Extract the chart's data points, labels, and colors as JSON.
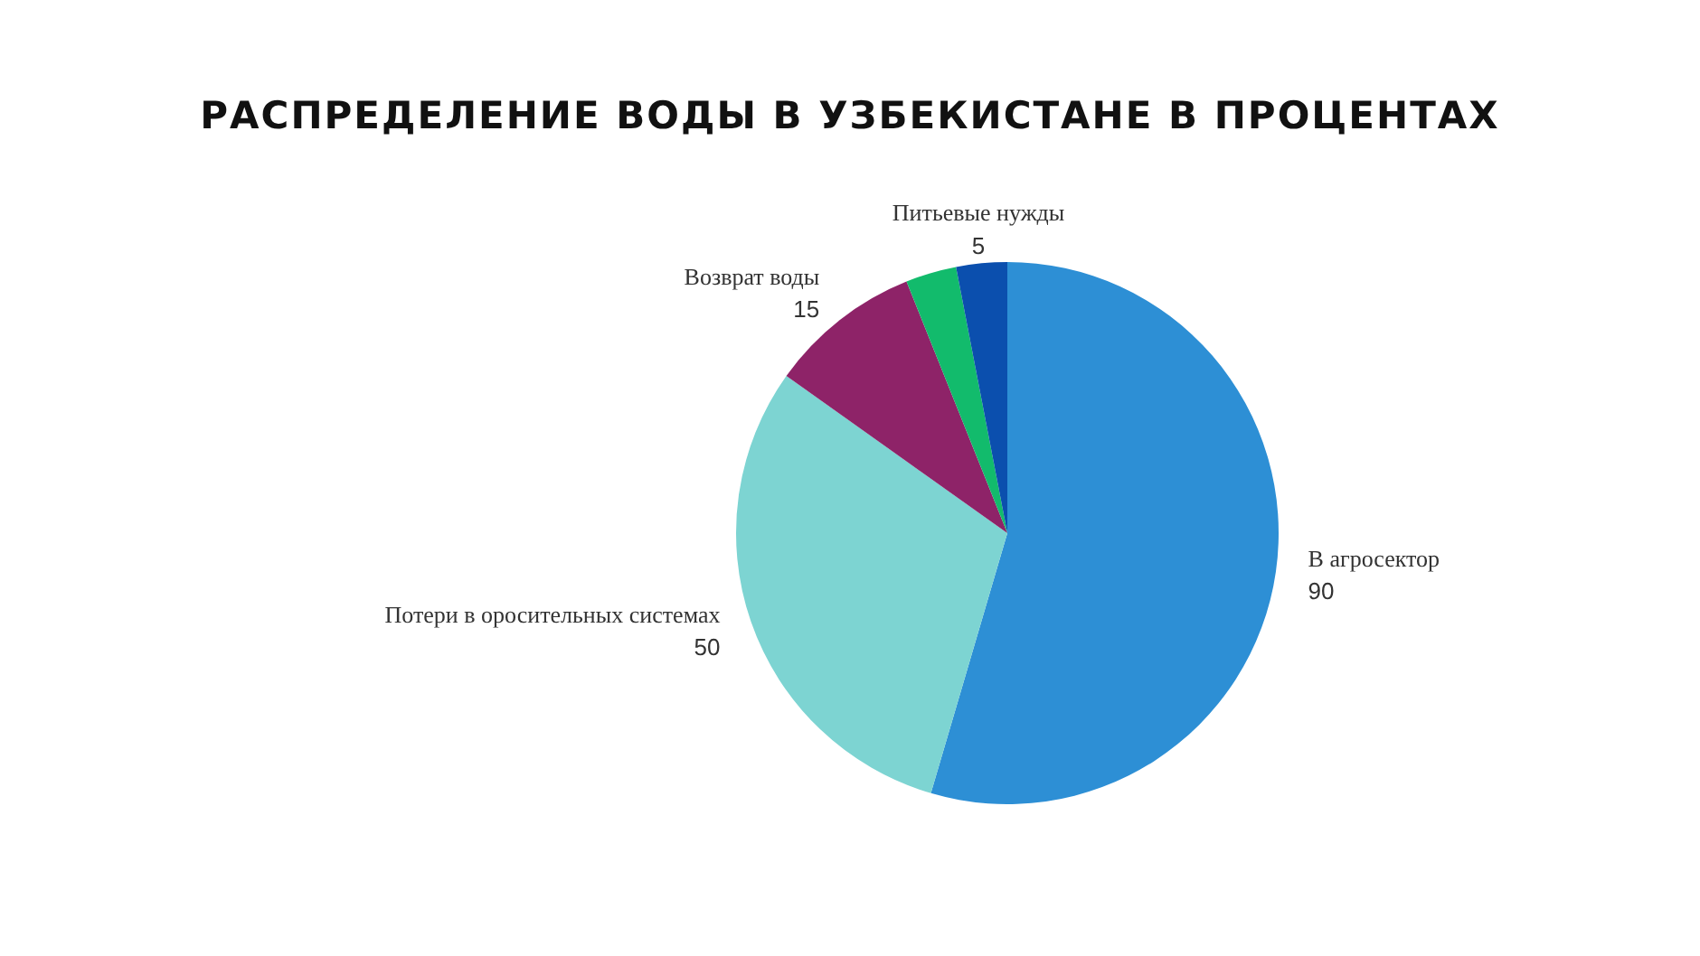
{
  "chart_data": {
    "type": "pie",
    "title": "РАСПРЕДЕЛЕНИЕ ВОДЫ В УЗБЕКИСТАНЕ В ПРОЦЕНТАХ",
    "categories": [
      "В агросектор",
      "Потери в оросительных системах",
      "Возврат воды",
      null,
      "Питьевые нужды"
    ],
    "values": [
      90,
      50,
      15,
      5,
      5
    ],
    "colors": [
      "#2d8fd5",
      "#7dd4d2",
      "#8e2368",
      "#12bb6c",
      "#0b4fae"
    ],
    "value_labels": [
      "90",
      "50",
      "15",
      null,
      "5"
    ],
    "legend": false
  }
}
